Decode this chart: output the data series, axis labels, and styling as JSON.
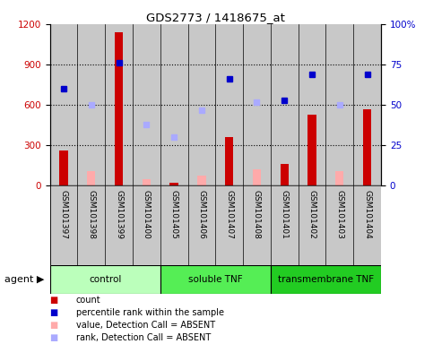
{
  "title": "GDS2773 / 1418675_at",
  "samples": [
    "GSM101397",
    "GSM101398",
    "GSM101399",
    "GSM101400",
    "GSM101405",
    "GSM101406",
    "GSM101407",
    "GSM101408",
    "GSM101401",
    "GSM101402",
    "GSM101403",
    "GSM101404"
  ],
  "groups": [
    {
      "name": "control",
      "start": 0,
      "end": 4,
      "color": "#bbffbb"
    },
    {
      "name": "soluble TNF",
      "start": 4,
      "end": 8,
      "color": "#55ee55"
    },
    {
      "name": "transmembrane TNF",
      "start": 8,
      "end": 12,
      "color": "#22cc22"
    }
  ],
  "count_bars": [
    260,
    0,
    1140,
    0,
    20,
    0,
    360,
    0,
    160,
    530,
    0,
    570
  ],
  "absent_value_bars": [
    0,
    110,
    0,
    50,
    0,
    75,
    0,
    125,
    0,
    0,
    110,
    0
  ],
  "percentile_rank_pct": [
    60,
    0,
    76,
    0,
    0,
    0,
    66,
    0,
    53,
    69,
    0,
    69
  ],
  "absent_rank_pct": [
    0,
    50,
    0,
    38,
    30,
    47,
    0,
    52,
    0,
    0,
    50,
    0
  ],
  "ylim_left": [
    0,
    1200
  ],
  "ylim_right": [
    0,
    100
  ],
  "yticks_left": [
    0,
    300,
    600,
    900,
    1200
  ],
  "yticks_right": [
    0,
    25,
    50,
    75,
    100
  ],
  "count_color": "#cc0000",
  "absent_value_color": "#ffaaaa",
  "percentile_color": "#0000cc",
  "absent_rank_color": "#aaaaff",
  "col_bg_color": "#c8c8c8",
  "left_tick_color": "#cc0000",
  "right_tick_color": "#0000cc"
}
